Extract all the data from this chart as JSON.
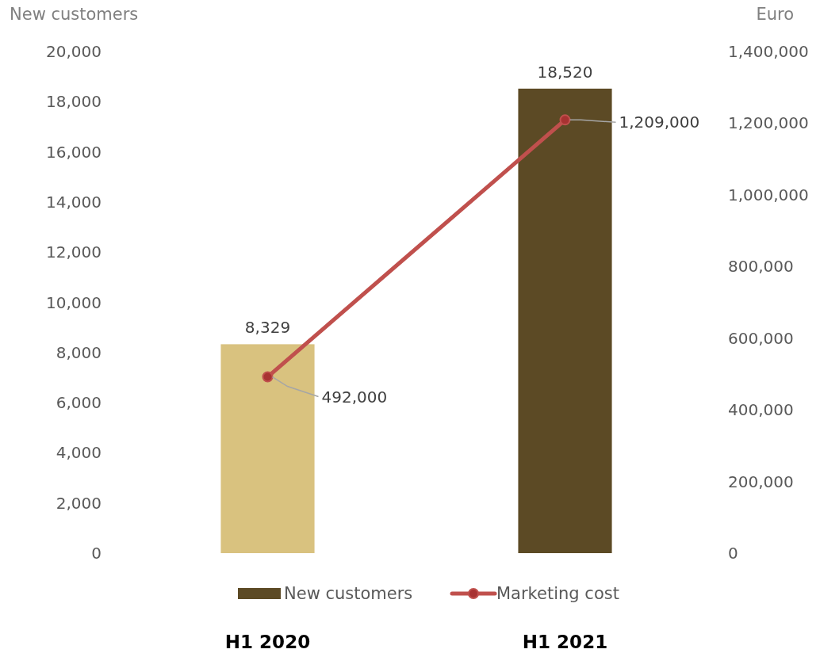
{
  "chart_data": {
    "type": "bar",
    "categories": [
      "H1 2020",
      "H1 2021"
    ],
    "ylabel": "New customers",
    "y2label": "Euro",
    "ylim": [
      0,
      20000
    ],
    "yticks": [
      {
        "value": 0,
        "label": "0"
      },
      {
        "value": 2000,
        "label": "2,000"
      },
      {
        "value": 4000,
        "label": "4,000"
      },
      {
        "value": 6000,
        "label": "6,000"
      },
      {
        "value": 8000,
        "label": "8,000"
      },
      {
        "value": 10000,
        "label": "10,000"
      },
      {
        "value": 12000,
        "label": "12,000"
      },
      {
        "value": 14000,
        "label": "14,000"
      },
      {
        "value": 16000,
        "label": "16,000"
      },
      {
        "value": 18000,
        "label": "18,000"
      },
      {
        "value": 20000,
        "label": "20,000"
      }
    ],
    "y2lim": [
      0,
      1400000
    ],
    "y2ticks": [
      {
        "value": 0,
        "label": "0"
      },
      {
        "value": 200000,
        "label": "200,000"
      },
      {
        "value": 400000,
        "label": "400,000"
      },
      {
        "value": 600000,
        "label": "600,000"
      },
      {
        "value": 800000,
        "label": "800,000"
      },
      {
        "value": 1000000,
        "label": "1,000,000"
      },
      {
        "value": 1200000,
        "label": "1,200,000"
      },
      {
        "value": 1400000,
        "label": "1,400,000"
      }
    ],
    "series": [
      {
        "name": "New customers",
        "color": "#5c4a25",
        "colors": [
          "#d9c27f",
          "#5c4a25"
        ],
        "values": [
          8329,
          18520
        ],
        "value_labels": [
          "8,329",
          "18,520"
        ]
      },
      {
        "name": "Marketing cost",
        "type": "line",
        "axis": "y2",
        "color": "#c0504d",
        "values": [
          492000,
          1209000
        ],
        "value_labels": [
          "492,000",
          "1,209,000"
        ],
        "marker": "circle"
      }
    ],
    "legend": "bottom",
    "grid": false
  }
}
